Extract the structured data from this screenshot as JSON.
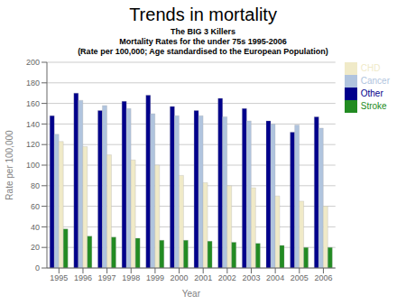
{
  "chart_data": {
    "type": "bar",
    "title": "Trends in mortality",
    "subtitle": [
      "The BIG 3 Killers",
      "Mortality Rates for the under 75s 1995-2006",
      "(Rate per 100,000; Age standardised to the European Population)"
    ],
    "xlabel": "Year",
    "ylabel": "Rate per 100,000",
    "categories": [
      "1995",
      "1996",
      "1997",
      "1998",
      "1999",
      "2000",
      "2001",
      "2002",
      "2003",
      "2004",
      "2005",
      "2006"
    ],
    "series": [
      {
        "name": "Other",
        "color": "#00008B",
        "values": [
          148,
          170,
          153,
          162,
          168,
          157,
          153,
          165,
          155,
          143,
          132,
          147
        ]
      },
      {
        "name": "Cancer",
        "color": "#B0C4DE",
        "values": [
          130,
          163,
          158,
          155,
          150,
          148,
          148,
          147,
          143,
          140,
          139,
          136
        ]
      },
      {
        "name": "CHD",
        "color": "#F0EAC8",
        "values": [
          123,
          118,
          110,
          105,
          100,
          90,
          83,
          80,
          78,
          70,
          65,
          60
        ]
      },
      {
        "name": "Stroke",
        "color": "#228B22",
        "values": [
          38,
          31,
          30,
          29,
          27,
          27,
          26,
          25,
          24,
          22,
          20,
          20
        ]
      }
    ],
    "ylim": [
      0,
      200
    ],
    "yticks": [
      0,
      20,
      40,
      60,
      80,
      100,
      120,
      140,
      160,
      180,
      200
    ],
    "grid": true,
    "legend": "right"
  }
}
